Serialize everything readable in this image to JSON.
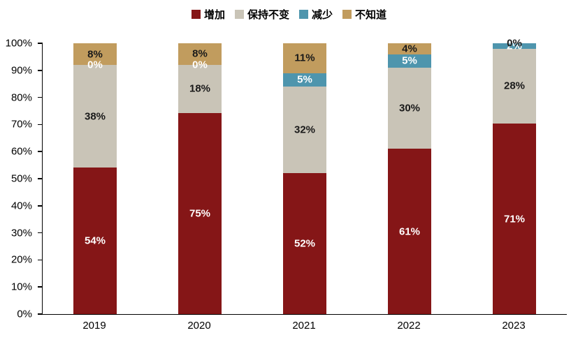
{
  "chart_data": {
    "type": "bar",
    "variant": "stacked-percent-column",
    "title": "",
    "categories": [
      "2019",
      "2020",
      "2021",
      "2022",
      "2023"
    ],
    "series": [
      {
        "name": "增加",
        "color": "#851617",
        "label_color": "#ffffff",
        "values": [
          54,
          75,
          52,
          61,
          71
        ],
        "labels": [
          "54%",
          "75%",
          "52%",
          "61%",
          "71%"
        ]
      },
      {
        "name": "保持不变",
        "color": "#C9C4B7",
        "label_color": "#1a1a1a",
        "values": [
          38,
          18,
          32,
          30,
          28
        ],
        "labels": [
          "38%",
          "18%",
          "32%",
          "30%",
          "28%"
        ]
      },
      {
        "name": "减少",
        "color": "#4E95AD",
        "label_color": "#ffffff",
        "values": [
          0,
          0,
          5,
          5,
          2
        ],
        "labels": [
          "0%",
          "0%",
          "5%",
          "5%",
          "2%"
        ]
      },
      {
        "name": "不知道",
        "color": "#C19C5E",
        "label_color": "#1a1a1a",
        "values": [
          8,
          8,
          11,
          4,
          0
        ],
        "labels": [
          "8%",
          "8%",
          "11%",
          "4%",
          "0%"
        ]
      }
    ],
    "y_axis": {
      "min": 0,
      "max": 100,
      "step": 10,
      "ticks": [
        "0%",
        "10%",
        "20%",
        "30%",
        "40%",
        "50%",
        "60%",
        "70%",
        "80%",
        "90%",
        "100%"
      ]
    },
    "legend_position": "top",
    "grid": false
  }
}
